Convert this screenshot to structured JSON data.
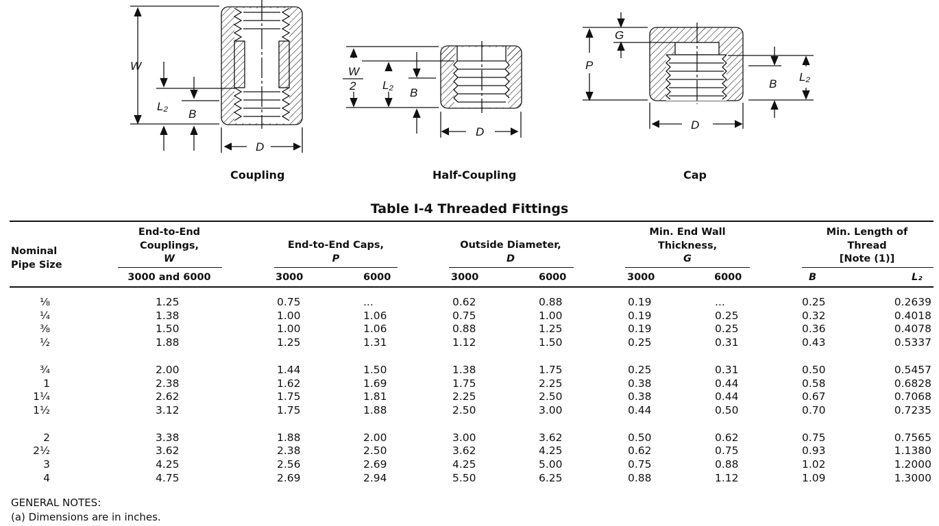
{
  "figures": {
    "coupling": {
      "caption": "Coupling",
      "labels": {
        "w": "W",
        "l2": "L₂",
        "b": "B",
        "d": "D"
      }
    },
    "half_coupling": {
      "caption": "Half-Coupling",
      "labels": {
        "w_num": "W",
        "w_den": "2",
        "l2": "L₂",
        "b": "B",
        "d": "D"
      }
    },
    "cap": {
      "caption": "Cap",
      "labels": {
        "g": "G",
        "p": "P",
        "b": "B",
        "l2": "L₂",
        "d": "D"
      }
    }
  },
  "table": {
    "title": "Table I-4   Threaded Fittings",
    "headers": {
      "size": "Nominal Pipe Size",
      "w_group": "End-to-End Couplings,",
      "w_sym": "W",
      "w_sub": "3000 and 6000",
      "p_group": "End-to-End Caps,",
      "p_sym": "P",
      "d_group": "Outside Diameter,",
      "d_sym": "D",
      "g_group": "Min. End Wall Thickness,",
      "g_sym": "G",
      "t_group": "Min. Length of Thread",
      "t_note": "[Note (1)]",
      "c3000": "3000",
      "c6000": "6000",
      "b": "B",
      "l2": "L₂"
    },
    "rows": [
      [
        "⅛",
        "1.25",
        "0.75",
        "...",
        "0.62",
        "0.88",
        "0.19",
        "...",
        "0.25",
        "0.2639"
      ],
      [
        "¼",
        "1.38",
        "1.00",
        "1.06",
        "0.75",
        "1.00",
        "0.19",
        "0.25",
        "0.32",
        "0.4018"
      ],
      [
        "⅜",
        "1.50",
        "1.00",
        "1.06",
        "0.88",
        "1.25",
        "0.19",
        "0.25",
        "0.36",
        "0.4078"
      ],
      [
        "½",
        "1.88",
        "1.25",
        "1.31",
        "1.12",
        "1.50",
        "0.25",
        "0.31",
        "0.43",
        "0.5337"
      ],
      [
        "¾",
        "2.00",
        "1.44",
        "1.50",
        "1.38",
        "1.75",
        "0.25",
        "0.31",
        "0.50",
        "0.5457"
      ],
      [
        "1",
        "2.38",
        "1.62",
        "1.69",
        "1.75",
        "2.25",
        "0.38",
        "0.44",
        "0.58",
        "0.6828"
      ],
      [
        "1¼",
        "2.62",
        "1.75",
        "1.81",
        "2.25",
        "2.50",
        "0.38",
        "0.44",
        "0.67",
        "0.7068"
      ],
      [
        "1½",
        "3.12",
        "1.75",
        "1.88",
        "2.50",
        "3.00",
        "0.44",
        "0.50",
        "0.70",
        "0.7235"
      ],
      [
        "2",
        "3.38",
        "1.88",
        "2.00",
        "3.00",
        "3.62",
        "0.50",
        "0.62",
        "0.75",
        "0.7565"
      ],
      [
        "2½",
        "3.62",
        "2.38",
        "2.50",
        "3.62",
        "4.25",
        "0.62",
        "0.75",
        "0.93",
        "1.1380"
      ],
      [
        "3",
        "4.25",
        "2.56",
        "2.69",
        "4.25",
        "5.00",
        "0.75",
        "0.88",
        "1.02",
        "1.2000"
      ],
      [
        "4",
        "4.75",
        "2.69",
        "2.94",
        "5.50",
        "6.25",
        "0.88",
        "1.12",
        "1.09",
        "1.3000"
      ]
    ]
  },
  "notes": {
    "heading": "GENERAL NOTES:",
    "items": [
      "(a)  Dimensions are in inches."
    ]
  }
}
